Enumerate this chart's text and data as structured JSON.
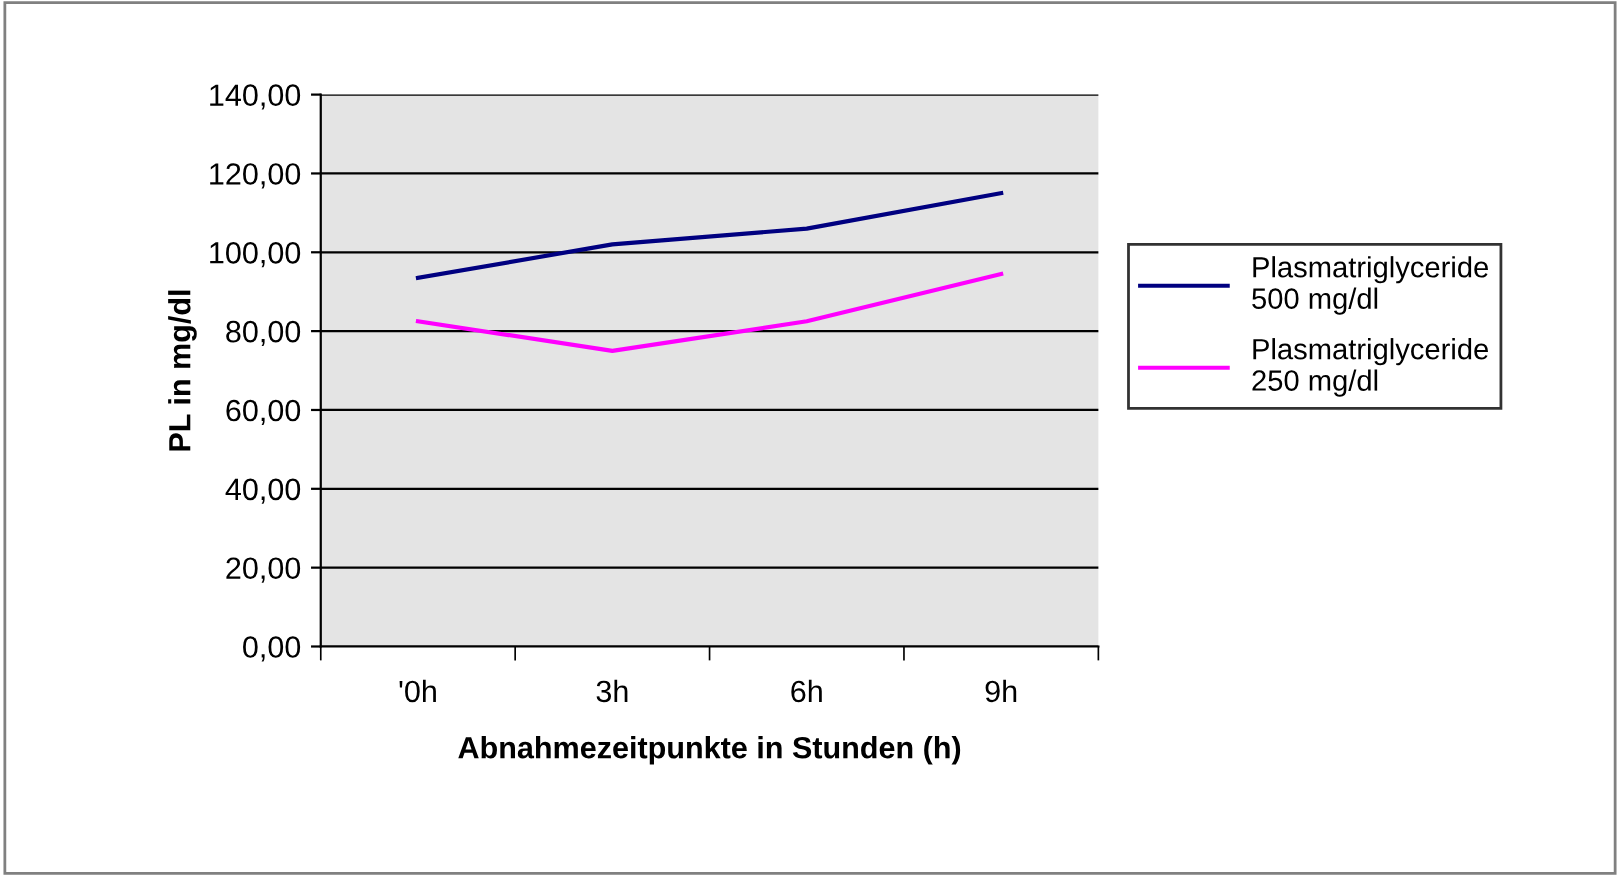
{
  "chart_data": {
    "type": "line",
    "xlabel": "Abnahmezeitpunkte in Stunden (h)",
    "ylabel": "PL in mg/dl",
    "categories": [
      "'0h",
      "3h",
      "6h",
      "9h"
    ],
    "series": [
      {
        "name": "Plasmatriglyceride\n500 mg/dl",
        "color": "#000080",
        "values": [
          93.5,
          102,
          106,
          115
        ]
      },
      {
        "name": "Plasmatriglyceride\n250 mg/dl",
        "color": "#ff00ff",
        "values": [
          82.5,
          75,
          82.5,
          94.5
        ]
      }
    ],
    "ylim": [
      0,
      140
    ],
    "yticks": [
      {
        "value": 0,
        "label": "0,00"
      },
      {
        "value": 20,
        "label": "20,00"
      },
      {
        "value": 40,
        "label": "40,00"
      },
      {
        "value": 60,
        "label": "60,00"
      },
      {
        "value": 80,
        "label": "80,00"
      },
      {
        "value": 100,
        "label": "100,00"
      },
      {
        "value": 120,
        "label": "120,00"
      },
      {
        "value": 140,
        "label": "140,00"
      }
    ],
    "grid": "y",
    "legend": "right",
    "marker": "none",
    "line_style": "solid"
  }
}
